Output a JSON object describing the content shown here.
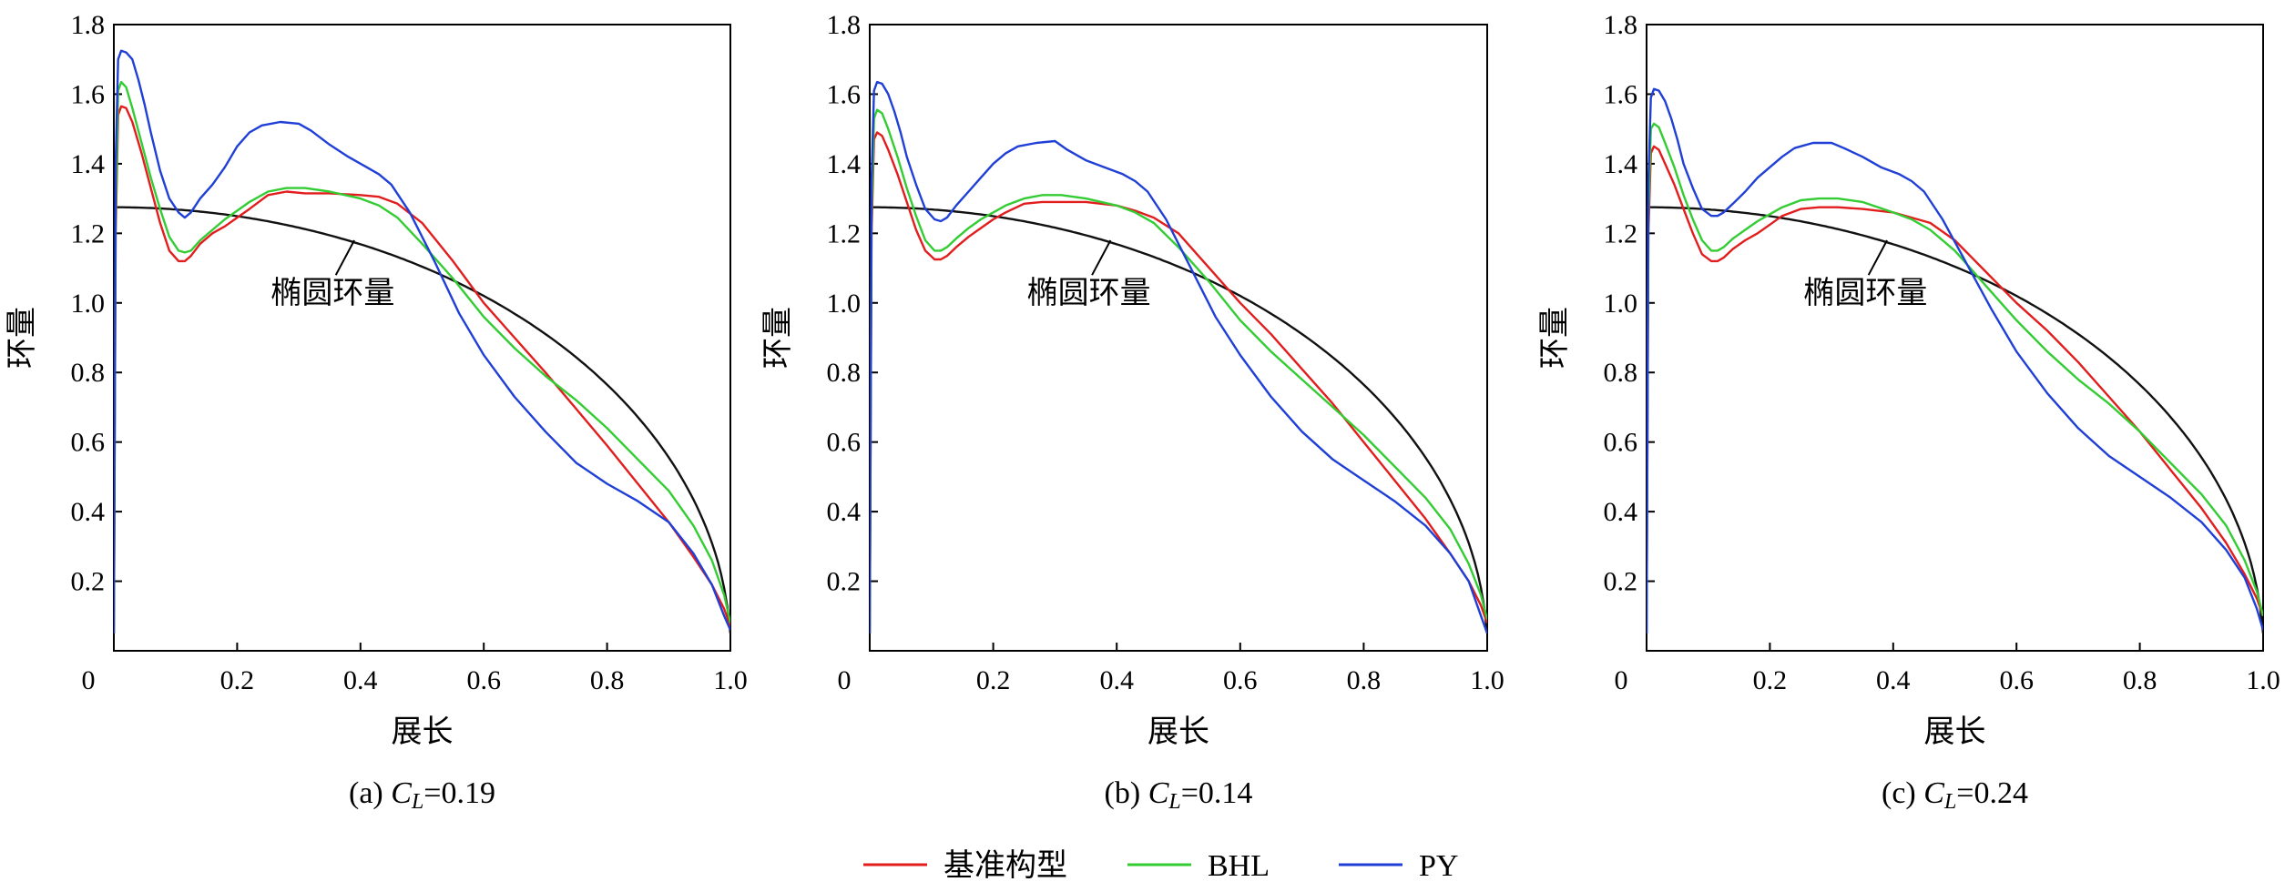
{
  "colors": {
    "base": "#e11d1d",
    "bhl": "#33cc33",
    "py": "#1f3fd6",
    "ellipse": "#111111"
  },
  "legend": [
    {
      "label": "基准构型",
      "color": "#e11d1d"
    },
    {
      "label": "BHL",
      "color": "#33cc33"
    },
    {
      "label": "PY",
      "color": "#1f3fd6"
    }
  ],
  "chart_data": [
    {
      "type": "line",
      "caption_prefix": "(a) ",
      "caption_var": "C",
      "caption_sub": "L",
      "caption_value": "=0.19",
      "xlabel": "展长",
      "ylabel": "环量",
      "xlim": [
        0,
        1.0
      ],
      "ylim": [
        0,
        1.8
      ],
      "xticks": [
        "0",
        "0.2",
        "0.4",
        "0.6",
        "0.8",
        "1.0"
      ],
      "yticks": [
        "0.2",
        "0.4",
        "0.6",
        "0.8",
        "1.0",
        "1.2",
        "1.4",
        "1.6",
        "1.8"
      ],
      "annotation": {
        "text": "椭圆环量",
        "x": 0.355,
        "y": 1.0,
        "pointer_from": [
          0.36,
          1.08
        ],
        "pointer_to": [
          0.39,
          1.18
        ]
      },
      "series": [
        {
          "key": "base",
          "x": [
            0,
            0.003,
            0.007,
            0.012,
            0.02,
            0.03,
            0.045,
            0.06,
            0.075,
            0.09,
            0.105,
            0.115,
            0.125,
            0.14,
            0.16,
            0.18,
            0.2,
            0.22,
            0.25,
            0.28,
            0.31,
            0.35,
            0.4,
            0.43,
            0.46,
            0.5,
            0.55,
            0.6,
            0.65,
            0.7,
            0.75,
            0.8,
            0.85,
            0.9,
            0.94,
            0.97,
            0.99,
            1.0
          ],
          "y": [
            0.05,
            1.2,
            1.54,
            1.565,
            1.56,
            1.52,
            1.43,
            1.33,
            1.23,
            1.15,
            1.12,
            1.12,
            1.135,
            1.17,
            1.2,
            1.22,
            1.245,
            1.27,
            1.31,
            1.32,
            1.315,
            1.315,
            1.31,
            1.305,
            1.285,
            1.23,
            1.12,
            1.0,
            0.9,
            0.8,
            0.695,
            0.59,
            0.48,
            0.37,
            0.27,
            0.19,
            0.12,
            0.07
          ]
        },
        {
          "key": "bhl",
          "x": [
            0,
            0.003,
            0.007,
            0.012,
            0.02,
            0.03,
            0.045,
            0.06,
            0.075,
            0.09,
            0.105,
            0.115,
            0.125,
            0.14,
            0.16,
            0.18,
            0.2,
            0.22,
            0.25,
            0.28,
            0.31,
            0.35,
            0.4,
            0.43,
            0.46,
            0.5,
            0.55,
            0.6,
            0.65,
            0.7,
            0.75,
            0.8,
            0.85,
            0.9,
            0.94,
            0.97,
            0.99,
            1.0
          ],
          "y": [
            0.05,
            1.25,
            1.61,
            1.635,
            1.62,
            1.56,
            1.46,
            1.36,
            1.27,
            1.19,
            1.15,
            1.145,
            1.15,
            1.18,
            1.21,
            1.24,
            1.265,
            1.29,
            1.32,
            1.33,
            1.33,
            1.32,
            1.3,
            1.28,
            1.245,
            1.17,
            1.07,
            0.96,
            0.87,
            0.79,
            0.72,
            0.64,
            0.55,
            0.46,
            0.36,
            0.26,
            0.16,
            0.08
          ]
        },
        {
          "key": "py",
          "x": [
            0,
            0.003,
            0.007,
            0.012,
            0.02,
            0.03,
            0.04,
            0.05,
            0.06,
            0.075,
            0.09,
            0.105,
            0.115,
            0.125,
            0.14,
            0.16,
            0.18,
            0.2,
            0.22,
            0.24,
            0.27,
            0.3,
            0.32,
            0.35,
            0.38,
            0.41,
            0.43,
            0.45,
            0.48,
            0.52,
            0.56,
            0.6,
            0.65,
            0.7,
            0.75,
            0.8,
            0.85,
            0.9,
            0.94,
            0.97,
            0.99,
            1.0
          ],
          "y": [
            0.05,
            1.4,
            1.7,
            1.725,
            1.72,
            1.7,
            1.64,
            1.57,
            1.49,
            1.38,
            1.3,
            1.26,
            1.245,
            1.26,
            1.3,
            1.34,
            1.39,
            1.45,
            1.49,
            1.51,
            1.52,
            1.515,
            1.495,
            1.455,
            1.42,
            1.39,
            1.37,
            1.34,
            1.26,
            1.12,
            0.97,
            0.85,
            0.73,
            0.63,
            0.54,
            0.48,
            0.43,
            0.37,
            0.28,
            0.19,
            0.1,
            0.06
          ]
        }
      ]
    },
    {
      "type": "line",
      "caption_prefix": "(b) ",
      "caption_var": "C",
      "caption_sub": "L",
      "caption_value": "=0.14",
      "xlabel": "展长",
      "ylabel": "环量",
      "xlim": [
        0,
        1.0
      ],
      "ylim": [
        0,
        1.8
      ],
      "xticks": [
        "0",
        "0.2",
        "0.4",
        "0.6",
        "0.8",
        "1.0"
      ],
      "yticks": [
        "0.2",
        "0.4",
        "0.6",
        "0.8",
        "1.0",
        "1.2",
        "1.4",
        "1.6",
        "1.8"
      ],
      "annotation": {
        "text": "椭圆环量",
        "x": 0.355,
        "y": 1.0,
        "pointer_from": [
          0.36,
          1.08
        ],
        "pointer_to": [
          0.39,
          1.18
        ]
      },
      "series": [
        {
          "key": "base",
          "x": [
            0,
            0.003,
            0.007,
            0.012,
            0.02,
            0.03,
            0.045,
            0.06,
            0.075,
            0.09,
            0.105,
            0.115,
            0.125,
            0.14,
            0.16,
            0.18,
            0.2,
            0.22,
            0.25,
            0.28,
            0.31,
            0.35,
            0.4,
            0.43,
            0.46,
            0.5,
            0.55,
            0.6,
            0.65,
            0.7,
            0.75,
            0.8,
            0.85,
            0.9,
            0.94,
            0.97,
            0.99,
            1.0
          ],
          "y": [
            0.05,
            1.2,
            1.47,
            1.49,
            1.48,
            1.44,
            1.37,
            1.29,
            1.21,
            1.15,
            1.125,
            1.125,
            1.135,
            1.16,
            1.19,
            1.215,
            1.24,
            1.26,
            1.285,
            1.29,
            1.29,
            1.29,
            1.28,
            1.265,
            1.245,
            1.2,
            1.1,
            1.0,
            0.91,
            0.81,
            0.71,
            0.6,
            0.49,
            0.38,
            0.28,
            0.2,
            0.13,
            0.08
          ]
        },
        {
          "key": "bhl",
          "x": [
            0,
            0.003,
            0.007,
            0.012,
            0.02,
            0.03,
            0.045,
            0.06,
            0.075,
            0.09,
            0.105,
            0.115,
            0.125,
            0.14,
            0.16,
            0.18,
            0.2,
            0.22,
            0.25,
            0.28,
            0.31,
            0.35,
            0.4,
            0.43,
            0.46,
            0.5,
            0.55,
            0.6,
            0.65,
            0.7,
            0.75,
            0.8,
            0.85,
            0.9,
            0.94,
            0.97,
            0.99,
            1.0
          ],
          "y": [
            0.05,
            1.25,
            1.53,
            1.555,
            1.545,
            1.5,
            1.42,
            1.33,
            1.25,
            1.18,
            1.15,
            1.15,
            1.16,
            1.185,
            1.215,
            1.24,
            1.26,
            1.28,
            1.3,
            1.31,
            1.31,
            1.3,
            1.28,
            1.26,
            1.23,
            1.16,
            1.06,
            0.95,
            0.86,
            0.78,
            0.7,
            0.62,
            0.53,
            0.44,
            0.35,
            0.25,
            0.16,
            0.09
          ]
        },
        {
          "key": "py",
          "x": [
            0,
            0.003,
            0.007,
            0.012,
            0.02,
            0.03,
            0.04,
            0.05,
            0.06,
            0.075,
            0.09,
            0.105,
            0.115,
            0.125,
            0.14,
            0.16,
            0.18,
            0.2,
            0.22,
            0.24,
            0.27,
            0.3,
            0.32,
            0.35,
            0.38,
            0.41,
            0.43,
            0.45,
            0.48,
            0.52,
            0.56,
            0.6,
            0.65,
            0.7,
            0.75,
            0.8,
            0.85,
            0.9,
            0.94,
            0.97,
            0.99,
            1.0
          ],
          "y": [
            0.05,
            1.35,
            1.61,
            1.635,
            1.63,
            1.6,
            1.55,
            1.49,
            1.42,
            1.34,
            1.27,
            1.24,
            1.235,
            1.245,
            1.28,
            1.32,
            1.36,
            1.4,
            1.43,
            1.45,
            1.46,
            1.465,
            1.44,
            1.41,
            1.39,
            1.37,
            1.35,
            1.32,
            1.24,
            1.1,
            0.96,
            0.85,
            0.73,
            0.63,
            0.55,
            0.49,
            0.43,
            0.36,
            0.28,
            0.2,
            0.1,
            0.05
          ]
        }
      ]
    },
    {
      "type": "line",
      "caption_prefix": "(c) ",
      "caption_var": "C",
      "caption_sub": "L",
      "caption_value": "=0.24",
      "xlabel": "展长",
      "ylabel": "环量",
      "xlim": [
        0,
        1.0
      ],
      "ylim": [
        0,
        1.8
      ],
      "xticks": [
        "0",
        "0.2",
        "0.4",
        "0.6",
        "0.8",
        "1.0"
      ],
      "yticks": [
        "0.2",
        "0.4",
        "0.6",
        "0.8",
        "1.0",
        "1.2",
        "1.4",
        "1.6",
        "1.8"
      ],
      "annotation": {
        "text": "椭圆环量",
        "x": 0.355,
        "y": 1.0,
        "pointer_from": [
          0.36,
          1.08
        ],
        "pointer_to": [
          0.39,
          1.18
        ]
      },
      "series": [
        {
          "key": "base",
          "x": [
            0,
            0.003,
            0.007,
            0.012,
            0.02,
            0.03,
            0.045,
            0.06,
            0.075,
            0.09,
            0.105,
            0.115,
            0.125,
            0.14,
            0.16,
            0.18,
            0.2,
            0.22,
            0.25,
            0.28,
            0.31,
            0.35,
            0.4,
            0.43,
            0.46,
            0.5,
            0.55,
            0.6,
            0.65,
            0.7,
            0.75,
            0.8,
            0.85,
            0.9,
            0.94,
            0.97,
            0.99,
            1.0
          ],
          "y": [
            0.05,
            1.2,
            1.43,
            1.45,
            1.44,
            1.4,
            1.34,
            1.27,
            1.2,
            1.14,
            1.12,
            1.12,
            1.13,
            1.155,
            1.18,
            1.2,
            1.225,
            1.25,
            1.27,
            1.275,
            1.275,
            1.27,
            1.26,
            1.245,
            1.23,
            1.18,
            1.09,
            1.0,
            0.92,
            0.83,
            0.73,
            0.63,
            0.52,
            0.41,
            0.31,
            0.22,
            0.15,
            0.1
          ]
        },
        {
          "key": "bhl",
          "x": [
            0,
            0.003,
            0.007,
            0.012,
            0.02,
            0.03,
            0.045,
            0.06,
            0.075,
            0.09,
            0.105,
            0.115,
            0.125,
            0.14,
            0.16,
            0.18,
            0.2,
            0.22,
            0.25,
            0.28,
            0.31,
            0.35,
            0.4,
            0.43,
            0.46,
            0.5,
            0.55,
            0.6,
            0.65,
            0.7,
            0.75,
            0.8,
            0.85,
            0.9,
            0.94,
            0.97,
            0.99,
            1.0
          ],
          "y": [
            0.05,
            1.25,
            1.5,
            1.515,
            1.505,
            1.46,
            1.39,
            1.31,
            1.24,
            1.18,
            1.15,
            1.15,
            1.16,
            1.185,
            1.21,
            1.235,
            1.255,
            1.275,
            1.295,
            1.3,
            1.3,
            1.29,
            1.26,
            1.24,
            1.21,
            1.15,
            1.05,
            0.95,
            0.86,
            0.78,
            0.71,
            0.63,
            0.54,
            0.45,
            0.36,
            0.26,
            0.17,
            0.1
          ]
        },
        {
          "key": "py",
          "x": [
            0,
            0.003,
            0.007,
            0.012,
            0.02,
            0.03,
            0.04,
            0.05,
            0.06,
            0.075,
            0.09,
            0.105,
            0.115,
            0.125,
            0.14,
            0.16,
            0.18,
            0.2,
            0.22,
            0.24,
            0.27,
            0.3,
            0.32,
            0.35,
            0.38,
            0.41,
            0.43,
            0.45,
            0.48,
            0.52,
            0.56,
            0.6,
            0.65,
            0.7,
            0.75,
            0.8,
            0.85,
            0.9,
            0.94,
            0.97,
            0.99,
            1.0
          ],
          "y": [
            0.05,
            1.35,
            1.59,
            1.615,
            1.61,
            1.58,
            1.53,
            1.47,
            1.4,
            1.33,
            1.27,
            1.25,
            1.25,
            1.26,
            1.285,
            1.32,
            1.36,
            1.39,
            1.42,
            1.445,
            1.46,
            1.46,
            1.445,
            1.42,
            1.39,
            1.37,
            1.35,
            1.32,
            1.24,
            1.11,
            0.98,
            0.86,
            0.74,
            0.64,
            0.56,
            0.5,
            0.44,
            0.37,
            0.29,
            0.21,
            0.12,
            0.06
          ]
        }
      ]
    }
  ]
}
